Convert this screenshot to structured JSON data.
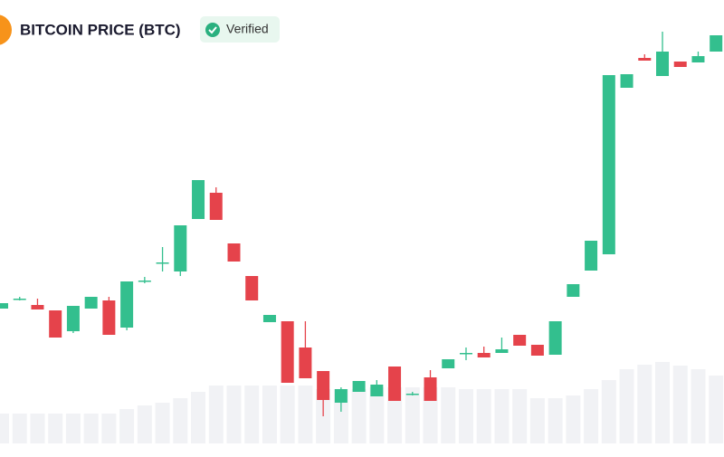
{
  "chart_data": {
    "type": "candlestick",
    "title": "BITCOIN PRICE (BTC)",
    "badge": "Verified",
    "up_color": "#33bf8e",
    "down_color": "#e5434b",
    "volume_color": "#f1f2f5",
    "ylim": [
      0,
      490
    ],
    "y2lim": [
      0,
      490
    ],
    "open": [
      149,
      160,
      153,
      147,
      124,
      149,
      158,
      128,
      179,
      199,
      190,
      248,
      277,
      221,
      185,
      134,
      135,
      106,
      80,
      45,
      57,
      52,
      85,
      55,
      73,
      83,
      99,
      100,
      100,
      120,
      109,
      98,
      162,
      191,
      209,
      393,
      426,
      406,
      422,
      421,
      433
    ],
    "close": [
      155,
      160,
      148,
      117,
      152,
      162,
      120,
      179,
      180,
      200,
      241,
      291,
      247,
      201,
      158,
      142,
      67,
      72,
      48,
      60,
      69,
      65,
      47,
      55,
      47,
      93,
      100,
      95,
      104,
      108,
      97,
      135,
      176,
      224,
      407,
      408,
      423,
      433,
      416,
      428,
      451
    ],
    "high": [
      155,
      162,
      160,
      147,
      152,
      162,
      162,
      179,
      184,
      217,
      241,
      291,
      283,
      221,
      185,
      142,
      135,
      135,
      80,
      62,
      69,
      70,
      85,
      57,
      81,
      93,
      106,
      107,
      117,
      120,
      109,
      135,
      176,
      224,
      407,
      408,
      430,
      455,
      422,
      433,
      451
    ],
    "low": [
      149,
      158,
      148,
      117,
      122,
      149,
      120,
      125,
      177,
      190,
      185,
      248,
      247,
      201,
      158,
      134,
      67,
      72,
      30,
      35,
      57,
      52,
      47,
      53,
      47,
      83,
      92,
      95,
      100,
      108,
      97,
      98,
      162,
      191,
      209,
      393,
      423,
      406,
      416,
      421,
      433
    ],
    "volume": [
      33,
      33,
      33,
      33,
      33,
      33,
      33,
      38,
      42,
      45,
      50,
      57,
      64,
      64,
      64,
      64,
      64,
      64,
      60,
      60,
      60,
      62,
      62,
      62,
      62,
      62,
      60,
      60,
      60,
      60,
      50,
      50,
      53,
      60,
      70,
      82,
      87,
      90,
      86,
      82,
      75
    ]
  }
}
